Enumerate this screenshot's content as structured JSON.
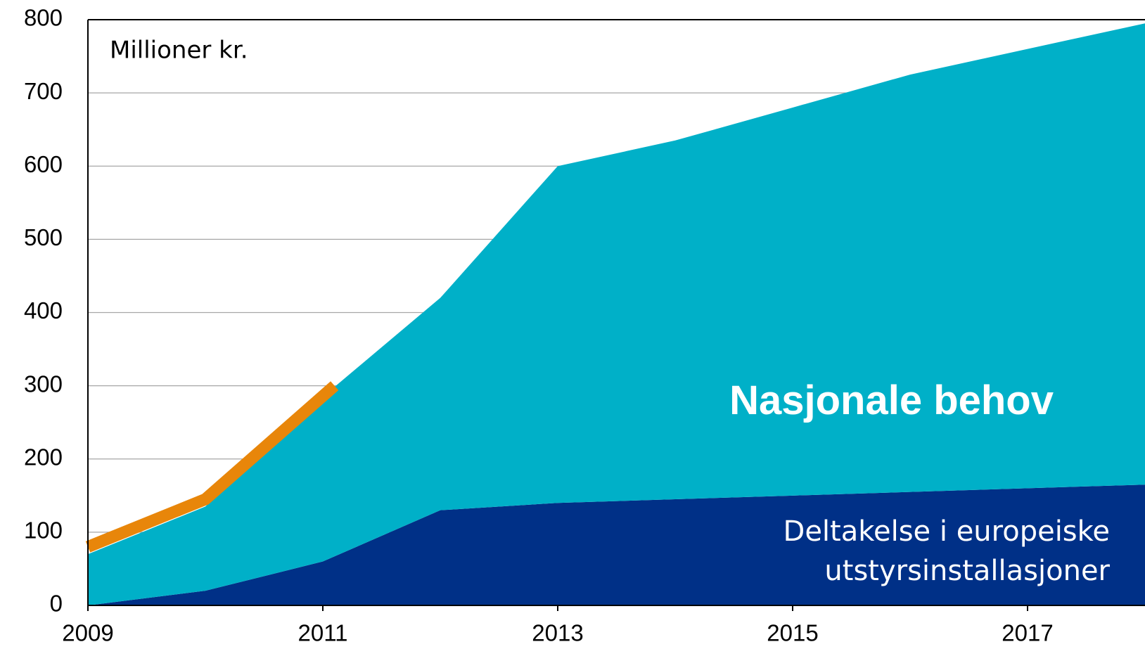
{
  "chart_data": {
    "type": "area",
    "annotation": "Millioner kr.",
    "x": [
      2009,
      2010,
      2011,
      2012,
      2013,
      2014,
      2015,
      2016,
      2017,
      2018
    ],
    "series": [
      {
        "name": "Deltakelse i europeiske utstyrsinstallasjoner",
        "color": "#003087",
        "values": [
          0,
          20,
          60,
          130,
          140,
          145,
          150,
          155,
          160,
          165
        ]
      },
      {
        "name": "Nasjonale behov",
        "color": "#00b0c8",
        "values": [
          70,
          115,
          225,
          290,
          460,
          490,
          530,
          570,
          600,
          630
        ]
      }
    ],
    "line": {
      "color": "#e8860a",
      "x": [
        2009,
        2010,
        2011.1
      ],
      "values": [
        80,
        145,
        300
      ]
    },
    "stacked": true,
    "xlim": [
      2009,
      2018
    ],
    "xticks": [
      2009,
      2011,
      2013,
      2015,
      2017
    ],
    "ylim": [
      0,
      800
    ],
    "yticks": [
      0,
      100,
      200,
      300,
      400,
      500,
      600,
      700,
      800
    ],
    "grid": true
  }
}
